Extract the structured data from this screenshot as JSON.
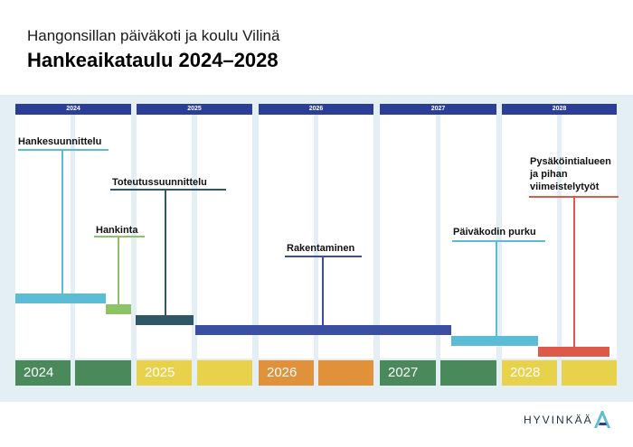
{
  "header": {
    "subtitle": "Hangonsillan päiväkoti ja koulu Vilinä",
    "title": "Hankeaikataulu 2024–2028"
  },
  "years": [
    "2024",
    "2025",
    "2026",
    "2027",
    "2028"
  ],
  "phases": [
    {
      "label": "Hankesuunnittelu",
      "color": "#5bbcd6"
    },
    {
      "label": "Hankinta",
      "color": "#8cc465"
    },
    {
      "label": "Toteutussuunnittelu",
      "color": "#2e5866"
    },
    {
      "label": "Rakentaminen",
      "color": "#3a4fa1"
    },
    {
      "label": "Päiväkodin purku",
      "color": "#5bbcd6"
    },
    {
      "label": "Pysäköintialueen ja pihan viimeistelytyöt",
      "color": "#dd5a4a"
    }
  ],
  "year_block_colors": [
    "#4a8a5a",
    "#e8d24b",
    "#e0913a",
    "#4a8a5a",
    "#e8d24b"
  ],
  "logo": {
    "text": "HYVINKÄÄ",
    "color": "#5bbcd6"
  }
}
